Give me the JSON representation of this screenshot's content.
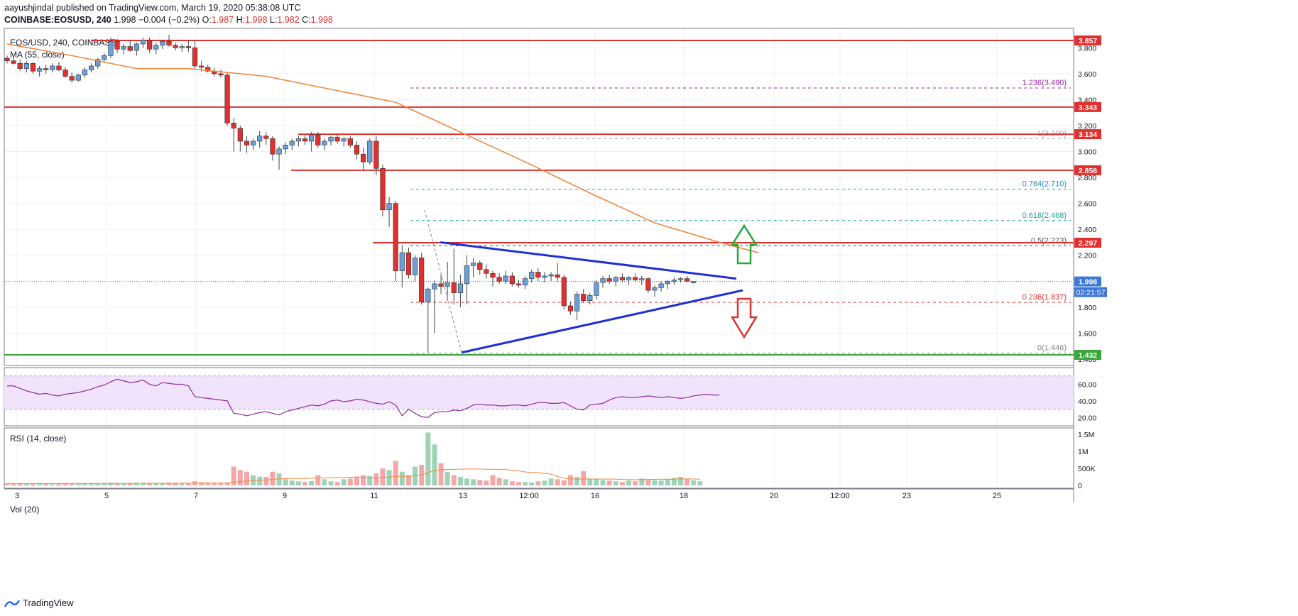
{
  "header": {
    "publish_line": "aayushjindal published on TradingView.com, March 19, 2020 05:38:08 UTC",
    "symbol": "COINBASE:EOSUSD, 240",
    "last": "1.998",
    "change": "−0.004 (−0.2%)",
    "o_label": "O:",
    "o": "1.987",
    "h_label": "H:",
    "h": "1.998",
    "l_label": "L:",
    "l": "1.982",
    "c_label": "C:",
    "c": "1.998"
  },
  "chart_title": "EOS/USD, 240, COINBASE",
  "ma_label": "MA (55, close)",
  "rsi_label": "RSI (14, close)",
  "vol_label": "Vol (20)",
  "footer_brand": "TradingView",
  "colors": {
    "up": "#6a9fd8",
    "down": "#e0302f",
    "ma": "#f0883e",
    "trend": "#1f2fd6",
    "support": "#3aa53a",
    "rsi": "#8a2ba0",
    "rsi_band": "#f1e3fb",
    "vol_up": "#9fd3b8",
    "vol_down": "#f4a7a7",
    "price_tag": "#3c78d8"
  },
  "chart_data": {
    "type": "candlestick",
    "price_axis": {
      "ticks": [
        "3.800",
        "3.600",
        "3.400",
        "3.200",
        "3.000",
        "2.800",
        "2.600",
        "2.400",
        "2.200",
        "1.800",
        "1.600",
        "1.400"
      ],
      "ylim": [
        1.35,
        3.95
      ]
    },
    "x_axis": {
      "ticks": [
        "3",
        "5",
        "7",
        "9",
        "11",
        "13",
        "12:00",
        "16",
        "18",
        "20",
        "12:00",
        "23",
        "25"
      ]
    },
    "ohlc": [
      [
        3.72,
        3.74,
        3.68,
        3.7
      ],
      [
        3.7,
        3.73,
        3.67,
        3.68
      ],
      [
        3.68,
        3.71,
        3.62,
        3.64
      ],
      [
        3.64,
        3.7,
        3.61,
        3.68
      ],
      [
        3.68,
        3.69,
        3.6,
        3.62
      ],
      [
        3.62,
        3.66,
        3.58,
        3.64
      ],
      [
        3.64,
        3.67,
        3.6,
        3.63
      ],
      [
        3.63,
        3.68,
        3.61,
        3.66
      ],
      [
        3.66,
        3.69,
        3.62,
        3.63
      ],
      [
        3.63,
        3.65,
        3.57,
        3.58
      ],
      [
        3.58,
        3.61,
        3.53,
        3.55
      ],
      [
        3.55,
        3.6,
        3.54,
        3.59
      ],
      [
        3.59,
        3.65,
        3.57,
        3.63
      ],
      [
        3.63,
        3.68,
        3.61,
        3.66
      ],
      [
        3.66,
        3.72,
        3.64,
        3.71
      ],
      [
        3.71,
        3.76,
        3.69,
        3.74
      ],
      [
        3.74,
        3.88,
        3.72,
        3.85
      ],
      [
        3.85,
        3.87,
        3.76,
        3.79
      ],
      [
        3.79,
        3.83,
        3.75,
        3.81
      ],
      [
        3.81,
        3.86,
        3.77,
        3.78
      ],
      [
        3.78,
        3.84,
        3.74,
        3.83
      ],
      [
        3.83,
        3.88,
        3.8,
        3.86
      ],
      [
        3.86,
        3.88,
        3.76,
        3.79
      ],
      [
        3.79,
        3.84,
        3.75,
        3.82
      ],
      [
        3.82,
        3.86,
        3.79,
        3.85
      ],
      [
        3.85,
        3.9,
        3.81,
        3.82
      ],
      [
        3.82,
        3.84,
        3.78,
        3.8
      ],
      [
        3.8,
        3.83,
        3.77,
        3.81
      ],
      [
        3.81,
        3.86,
        3.77,
        3.8
      ],
      [
        3.8,
        3.86,
        3.64,
        3.66
      ],
      [
        3.66,
        3.7,
        3.62,
        3.65
      ],
      [
        3.65,
        3.67,
        3.61,
        3.62
      ],
      [
        3.62,
        3.65,
        3.58,
        3.6
      ],
      [
        3.6,
        3.63,
        3.57,
        3.59
      ],
      [
        3.59,
        3.61,
        3.2,
        3.22
      ],
      [
        3.22,
        3.26,
        3.0,
        3.18
      ],
      [
        3.18,
        3.2,
        3.0,
        3.08
      ],
      [
        3.08,
        3.12,
        2.99,
        3.05
      ],
      [
        3.05,
        3.1,
        3.01,
        3.08
      ],
      [
        3.08,
        3.16,
        3.03,
        3.12
      ],
      [
        3.12,
        3.15,
        3.05,
        3.1
      ],
      [
        3.1,
        3.12,
        2.93,
        2.98
      ],
      [
        2.98,
        3.04,
        2.86,
        3.02
      ],
      [
        3.02,
        3.07,
        2.98,
        3.05
      ],
      [
        3.05,
        3.1,
        3.01,
        3.08
      ],
      [
        3.08,
        3.12,
        3.04,
        3.1
      ],
      [
        3.1,
        3.13,
        3.05,
        3.08
      ],
      [
        3.08,
        3.15,
        3.0,
        3.13
      ],
      [
        3.13,
        3.15,
        3.03,
        3.05
      ],
      [
        3.05,
        3.1,
        3.01,
        3.08
      ],
      [
        3.08,
        3.12,
        3.05,
        3.11
      ],
      [
        3.11,
        3.13,
        3.06,
        3.08
      ],
      [
        3.08,
        3.11,
        3.04,
        3.1
      ],
      [
        3.1,
        3.12,
        3.03,
        3.05
      ],
      [
        3.05,
        3.08,
        2.94,
        2.98
      ],
      [
        2.98,
        3.03,
        2.86,
        2.92
      ],
      [
        2.92,
        3.1,
        2.9,
        3.08
      ],
      [
        3.08,
        3.12,
        2.82,
        2.87
      ],
      [
        2.87,
        2.9,
        2.5,
        2.55
      ],
      [
        2.55,
        2.65,
        2.42,
        2.6
      ],
      [
        2.6,
        2.62,
        2.0,
        2.08
      ],
      [
        2.08,
        2.28,
        1.95,
        2.22
      ],
      [
        2.22,
        2.26,
        2.02,
        2.05
      ],
      [
        2.05,
        2.2,
        2.0,
        2.18
      ],
      [
        2.18,
        2.22,
        1.82,
        1.84
      ],
      [
        1.84,
        1.95,
        1.45,
        1.94
      ],
      [
        1.94,
        2.01,
        1.6,
        1.98
      ],
      [
        1.98,
        2.05,
        1.9,
        1.96
      ],
      [
        1.96,
        2.15,
        1.85,
        1.99
      ],
      [
        1.99,
        2.25,
        1.82,
        1.91
      ],
      [
        1.91,
        2.05,
        1.8,
        1.98
      ],
      [
        1.98,
        2.2,
        1.82,
        2.12
      ],
      [
        2.12,
        2.18,
        2.03,
        2.14
      ],
      [
        2.14,
        2.16,
        2.05,
        2.09
      ],
      [
        2.09,
        2.13,
        2.02,
        2.06
      ],
      [
        2.06,
        2.08,
        1.96,
        2.03
      ],
      [
        2.03,
        2.06,
        1.98,
        2.0
      ],
      [
        2.0,
        2.08,
        1.98,
        2.04
      ],
      [
        2.04,
        2.07,
        1.96,
        1.98
      ],
      [
        1.98,
        2.01,
        1.95,
        1.97
      ],
      [
        1.97,
        2.04,
        1.94,
        2.02
      ],
      [
        2.02,
        2.09,
        1.99,
        2.07
      ],
      [
        2.07,
        2.1,
        2.0,
        2.03
      ],
      [
        2.03,
        2.07,
        1.99,
        2.04
      ],
      [
        2.04,
        2.07,
        2.0,
        2.05
      ],
      [
        2.05,
        2.14,
        2.0,
        2.03
      ],
      [
        2.03,
        2.05,
        1.78,
        1.81
      ],
      [
        1.81,
        1.84,
        1.74,
        1.77
      ],
      [
        1.77,
        1.92,
        1.7,
        1.9
      ],
      [
        1.9,
        1.94,
        1.83,
        1.85
      ],
      [
        1.85,
        1.91,
        1.82,
        1.89
      ],
      [
        1.89,
        2.01,
        1.86,
        1.99
      ],
      [
        1.99,
        2.04,
        1.95,
        2.02
      ],
      [
        2.02,
        2.05,
        1.98,
        2.0
      ],
      [
        2.0,
        2.04,
        1.96,
        2.03
      ],
      [
        2.03,
        2.06,
        1.99,
        2.01
      ],
      [
        2.01,
        2.04,
        1.97,
        2.03
      ],
      [
        2.03,
        2.06,
        2.0,
        2.01
      ],
      [
        2.01,
        2.04,
        1.97,
        2.02
      ],
      [
        2.02,
        2.03,
        1.91,
        1.93
      ],
      [
        1.93,
        1.97,
        1.88,
        1.95
      ],
      [
        1.95,
        2.0,
        1.92,
        1.98
      ],
      [
        1.98,
        2.01,
        1.94,
        2.0
      ],
      [
        2.0,
        2.03,
        1.97,
        2.01
      ],
      [
        2.01,
        2.03,
        1.99,
        2.02
      ],
      [
        2.02,
        2.04,
        1.99,
        2.0
      ],
      [
        1.987,
        1.998,
        1.982,
        1.998
      ]
    ],
    "ma55": [
      [
        0,
        3.83
      ],
      [
        10,
        3.74
      ],
      [
        20,
        3.64
      ],
      [
        28,
        3.64
      ],
      [
        40,
        3.58
      ],
      [
        50,
        3.48
      ],
      [
        60,
        3.38
      ],
      [
        70,
        3.15
      ],
      [
        80,
        2.92
      ],
      [
        90,
        2.68
      ],
      [
        100,
        2.45
      ],
      [
        110,
        2.3
      ],
      [
        116,
        2.22
      ]
    ],
    "levels": [
      {
        "label": "3.857",
        "value": 3.857,
        "color": "#e0302f"
      },
      {
        "label": "3.343",
        "value": 3.343,
        "color": "#e0302f"
      },
      {
        "label": "3.134",
        "value": 3.134,
        "color": "#e0302f"
      },
      {
        "label": "2.856",
        "value": 2.856,
        "color": "#e0302f"
      },
      {
        "label": "2.297",
        "value": 2.297,
        "color": "#e0302f"
      },
      {
        "label": "1.998",
        "value": 1.998,
        "color": "#3c78d8"
      },
      {
        "label": "1.432",
        "value": 1.432,
        "color": "#3aa53a"
      }
    ],
    "countdown": "02:21:57",
    "fib": [
      {
        "label": "1.236(3.490)",
        "value": 3.49,
        "color": "#9c27b0"
      },
      {
        "label": "1(3.100)",
        "value": 3.1,
        "color": "#9aa6b2"
      },
      {
        "label": "0.764(2.710)",
        "value": 2.71,
        "color": "#2196c9"
      },
      {
        "label": "0.618(2.468)",
        "value": 2.468,
        "color": "#26a69a"
      },
      {
        "label": "0.5(2.273)",
        "value": 2.273,
        "color": "#555555"
      },
      {
        "label": "0.236(1.837)",
        "value": 1.837,
        "color": "#e0302f"
      },
      {
        "label": "0(1.446)",
        "value": 1.446,
        "color": "#888888"
      }
    ],
    "triangle_upper": [
      [
        2.3
      ],
      [
        2.02
      ]
    ],
    "triangle_lower": [
      [
        1.45
      ],
      [
        1.93
      ]
    ],
    "rsi": {
      "ticks": [
        "60.00",
        "40.00",
        "20.00"
      ],
      "band": [
        30,
        70
      ],
      "values": [
        58,
        58,
        55,
        52,
        50,
        48,
        49,
        47,
        46,
        48,
        49,
        50,
        52,
        54,
        57,
        59,
        63,
        66,
        64,
        62,
        63,
        65,
        60,
        58,
        62,
        61,
        60,
        60,
        58,
        45,
        44,
        43,
        42,
        41,
        40,
        25,
        24,
        22,
        24,
        26,
        27,
        25,
        23,
        27,
        29,
        31,
        33,
        35,
        34,
        36,
        40,
        41,
        39,
        40,
        42,
        41,
        39,
        37,
        36,
        39,
        35,
        22,
        30,
        25,
        21,
        20,
        26,
        27,
        27,
        29,
        28,
        31,
        35,
        36,
        35,
        35,
        34,
        34,
        35,
        35,
        34,
        36,
        38,
        38,
        37,
        37,
        38,
        34,
        30,
        29,
        35,
        36,
        37,
        41,
        44,
        45,
        44,
        44,
        45,
        46,
        45,
        44,
        45,
        44,
        43,
        44,
        46,
        47,
        48,
        47,
        47
      ]
    },
    "volume": {
      "ticks": [
        "1.5M",
        "1M",
        "500K",
        "0"
      ],
      "values": [
        0.06,
        0.05,
        0.06,
        0.05,
        0.06,
        0.05,
        0.06,
        0.05,
        0.06,
        0.07,
        0.06,
        0.05,
        0.06,
        0.07,
        0.06,
        0.07,
        0.08,
        0.07,
        0.06,
        0.07,
        0.08,
        0.07,
        0.06,
        0.07,
        0.06,
        0.08,
        0.07,
        0.06,
        0.07,
        0.12,
        0.09,
        0.07,
        0.06,
        0.07,
        0.08,
        0.55,
        0.45,
        0.4,
        0.3,
        0.26,
        0.25,
        0.4,
        0.35,
        0.18,
        0.14,
        0.12,
        0.1,
        0.13,
        0.3,
        0.18,
        0.12,
        0.1,
        0.18,
        0.2,
        0.25,
        0.3,
        0.28,
        0.35,
        0.5,
        0.45,
        0.72,
        0.4,
        0.3,
        0.55,
        0.6,
        1.55,
        1.2,
        0.65,
        0.4,
        0.3,
        0.25,
        0.2,
        0.18,
        0.16,
        0.14,
        0.3,
        0.22,
        0.18,
        0.12,
        0.1,
        0.1,
        0.09,
        0.12,
        0.14,
        0.2,
        0.18,
        0.15,
        0.3,
        0.25,
        0.42,
        0.2,
        0.18,
        0.16,
        0.14,
        0.12,
        0.1,
        0.14,
        0.12,
        0.2,
        0.18,
        0.15,
        0.14,
        0.18,
        0.22,
        0.25,
        0.18,
        0.15,
        0.12
      ]
    }
  }
}
